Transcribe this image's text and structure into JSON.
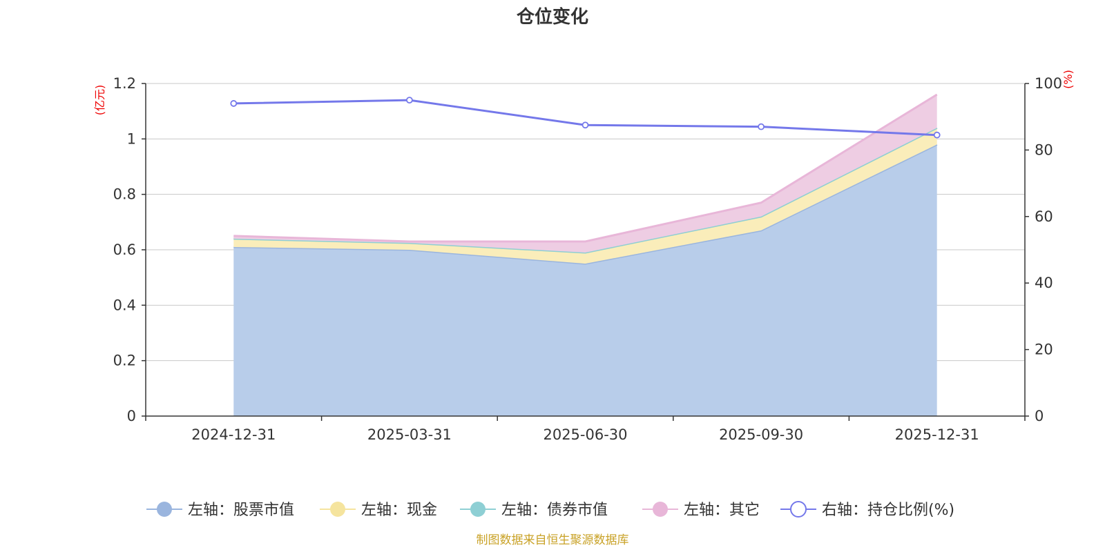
{
  "chart_data": {
    "type": "area",
    "title": "仓位变化",
    "left_axis_unit": "(亿元)",
    "right_axis_unit": "(%)",
    "categories": [
      "2024-12-31",
      "2025-03-31",
      "2025-06-30",
      "2025-09-30",
      "2025-12-31"
    ],
    "ylim_left": [
      0,
      1.2
    ],
    "yticks_left": [
      "0",
      "0.2",
      "0.4",
      "0.6",
      "0.8",
      "1",
      "1.2"
    ],
    "ylim_right": [
      0,
      100
    ],
    "yticks_right": [
      "0",
      "20",
      "40",
      "60",
      "80",
      "100"
    ],
    "stacked": true,
    "grid": true,
    "legend_position": "bottom",
    "series": [
      {
        "name": "左轴：股票市值",
        "axis": "left",
        "type": "area",
        "color": "#9ab5de",
        "fill": "#b8cdea",
        "values": [
          0.61,
          0.6,
          0.55,
          0.67,
          0.98
        ]
      },
      {
        "name": "左轴：现金",
        "axis": "left",
        "type": "area",
        "color": "#f5e49e",
        "fill": "#faedba",
        "values": [
          0.03,
          0.025,
          0.04,
          0.05,
          0.06
        ]
      },
      {
        "name": "左轴：债券市值",
        "axis": "left",
        "type": "area",
        "color": "#8ecfd4",
        "fill": "#b6e1e4",
        "values": [
          0,
          0,
          0,
          0,
          0
        ]
      },
      {
        "name": "左轴：其它",
        "axis": "left",
        "type": "area",
        "color": "#e8b6d8",
        "fill": "#eecde3",
        "values": [
          0.01,
          0.005,
          0.04,
          0.05,
          0.12
        ]
      },
      {
        "name": "右轴：持仓比例(%)",
        "axis": "right",
        "type": "line",
        "color": "#7478ea",
        "values": [
          94.0,
          95.0,
          87.5,
          87.0,
          84.5
        ]
      }
    ],
    "source_note": "制图数据来自恒生聚源数据库"
  }
}
